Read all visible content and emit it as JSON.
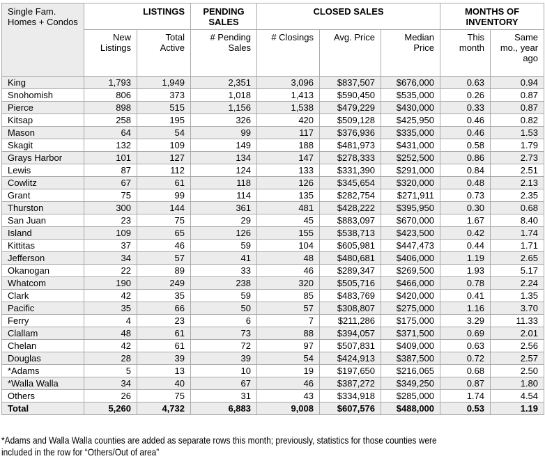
{
  "table": {
    "corner_header": "Single Fam. Homes + Condos",
    "groups": [
      {
        "label": "LISTINGS",
        "cols": 2,
        "align": "right"
      },
      {
        "label": "PENDING SALES",
        "cols": 1,
        "align": "center"
      },
      {
        "label": "CLOSED SALES",
        "cols": 3,
        "align": "center"
      },
      {
        "label": "MONTHS OF INVENTORY",
        "cols": 2,
        "align": "center"
      }
    ],
    "columns": [
      "New Listings",
      "Total Active",
      "# Pending Sales",
      "# Closings",
      "Avg. Price",
      "Median Price",
      "This month",
      "Same mo., year ago"
    ],
    "rows": [
      {
        "county": "King",
        "values": [
          "1,793",
          "1,949",
          "2,351",
          "3,096",
          "$837,507",
          "$676,000",
          "0.63",
          "0.94"
        ]
      },
      {
        "county": "Snohomish",
        "values": [
          "806",
          "373",
          "1,018",
          "1,413",
          "$590,450",
          "$535,000",
          "0.26",
          "0.87"
        ]
      },
      {
        "county": "Pierce",
        "values": [
          "898",
          "515",
          "1,156",
          "1,538",
          "$479,229",
          "$430,000",
          "0.33",
          "0.87"
        ]
      },
      {
        "county": "Kitsap",
        "values": [
          "258",
          "195",
          "326",
          "420",
          "$509,128",
          "$425,950",
          "0.46",
          "0.82"
        ]
      },
      {
        "county": "Mason",
        "values": [
          "64",
          "54",
          "99",
          "117",
          "$376,936",
          "$335,000",
          "0.46",
          "1.53"
        ]
      },
      {
        "county": "Skagit",
        "values": [
          "132",
          "109",
          "149",
          "188",
          "$481,973",
          "$431,000",
          "0.58",
          "1.79"
        ]
      },
      {
        "county": "Grays Harbor",
        "values": [
          "101",
          "127",
          "134",
          "147",
          "$278,333",
          "$252,500",
          "0.86",
          "2.73"
        ]
      },
      {
        "county": "Lewis",
        "values": [
          "87",
          "112",
          "124",
          "133",
          "$331,390",
          "$291,000",
          "0.84",
          "2.51"
        ]
      },
      {
        "county": "Cowlitz",
        "values": [
          "67",
          "61",
          "118",
          "126",
          "$345,654",
          "$320,000",
          "0.48",
          "2.13"
        ]
      },
      {
        "county": "Grant",
        "values": [
          "75",
          "99",
          "114",
          "135",
          "$282,754",
          "$271,911",
          "0.73",
          "2.35"
        ]
      },
      {
        "county": "Thurston",
        "values": [
          "300",
          "144",
          "361",
          "481",
          "$428,222",
          "$395,950",
          "0.30",
          "0.68"
        ]
      },
      {
        "county": "San Juan",
        "values": [
          "23",
          "75",
          "29",
          "45",
          "$883,097",
          "$670,000",
          "1.67",
          "8.40"
        ]
      },
      {
        "county": "Island",
        "values": [
          "109",
          "65",
          "126",
          "155",
          "$538,713",
          "$423,500",
          "0.42",
          "1.74"
        ]
      },
      {
        "county": "Kittitas",
        "values": [
          "37",
          "46",
          "59",
          "104",
          "$605,981",
          "$447,473",
          "0.44",
          "1.71"
        ]
      },
      {
        "county": "Jefferson",
        "values": [
          "34",
          "57",
          "41",
          "48",
          "$480,681",
          "$406,000",
          "1.19",
          "2.65"
        ]
      },
      {
        "county": "Okanogan",
        "values": [
          "22",
          "89",
          "33",
          "46",
          "$289,347",
          "$269,500",
          "1.93",
          "5.17"
        ]
      },
      {
        "county": "Whatcom",
        "values": [
          "190",
          "249",
          "238",
          "320",
          "$505,716",
          "$466,000",
          "0.78",
          "2.24"
        ]
      },
      {
        "county": "Clark",
        "values": [
          "42",
          "35",
          "59",
          "85",
          "$483,769",
          "$420,000",
          "0.41",
          "1.35"
        ]
      },
      {
        "county": "Pacific",
        "values": [
          "35",
          "66",
          "50",
          "57",
          "$308,807",
          "$275,000",
          "1.16",
          "3.70"
        ]
      },
      {
        "county": "Ferry",
        "values": [
          "4",
          "23",
          "6",
          "7",
          "$211,286",
          "$175,000",
          "3.29",
          "11.33"
        ]
      },
      {
        "county": "Clallam",
        "values": [
          "48",
          "61",
          "73",
          "88",
          "$394,057",
          "$371,500",
          "0.69",
          "2.01"
        ]
      },
      {
        "county": "Chelan",
        "values": [
          "42",
          "61",
          "72",
          "97",
          "$507,831",
          "$409,000",
          "0.63",
          "2.56"
        ]
      },
      {
        "county": "Douglas",
        "values": [
          "28",
          "39",
          "39",
          "54",
          "$424,913",
          "$387,500",
          "0.72",
          "2.57"
        ]
      },
      {
        "county": "*Adams",
        "values": [
          "5",
          "13",
          "10",
          "19",
          "$197,650",
          "$216,065",
          "0.68",
          "2.50"
        ]
      },
      {
        "county": "*Walla Walla",
        "values": [
          "34",
          "40",
          "67",
          "46",
          "$387,272",
          "$349,250",
          "0.87",
          "1.80"
        ]
      },
      {
        "county": "Others",
        "values": [
          "26",
          "75",
          "31",
          "43",
          "$334,918",
          "$285,000",
          "1.74",
          "4.54"
        ]
      },
      {
        "county": "Total",
        "values": [
          "5,260",
          "4,732",
          "6,883",
          "9,008",
          "$607,576",
          "$488,000",
          "0.53",
          "1.19"
        ],
        "bold": true
      }
    ]
  },
  "footnote": {
    "line1": "*Adams and Walla Walla counties are added as separate rows this month; previously, statistics for those counties were",
    "line2": "included in the row for “Others/Out of area”"
  },
  "colors": {
    "stripe": "#ececec",
    "border": "#a9a9a9",
    "header_bg": "#ececec",
    "text": "#000000"
  }
}
